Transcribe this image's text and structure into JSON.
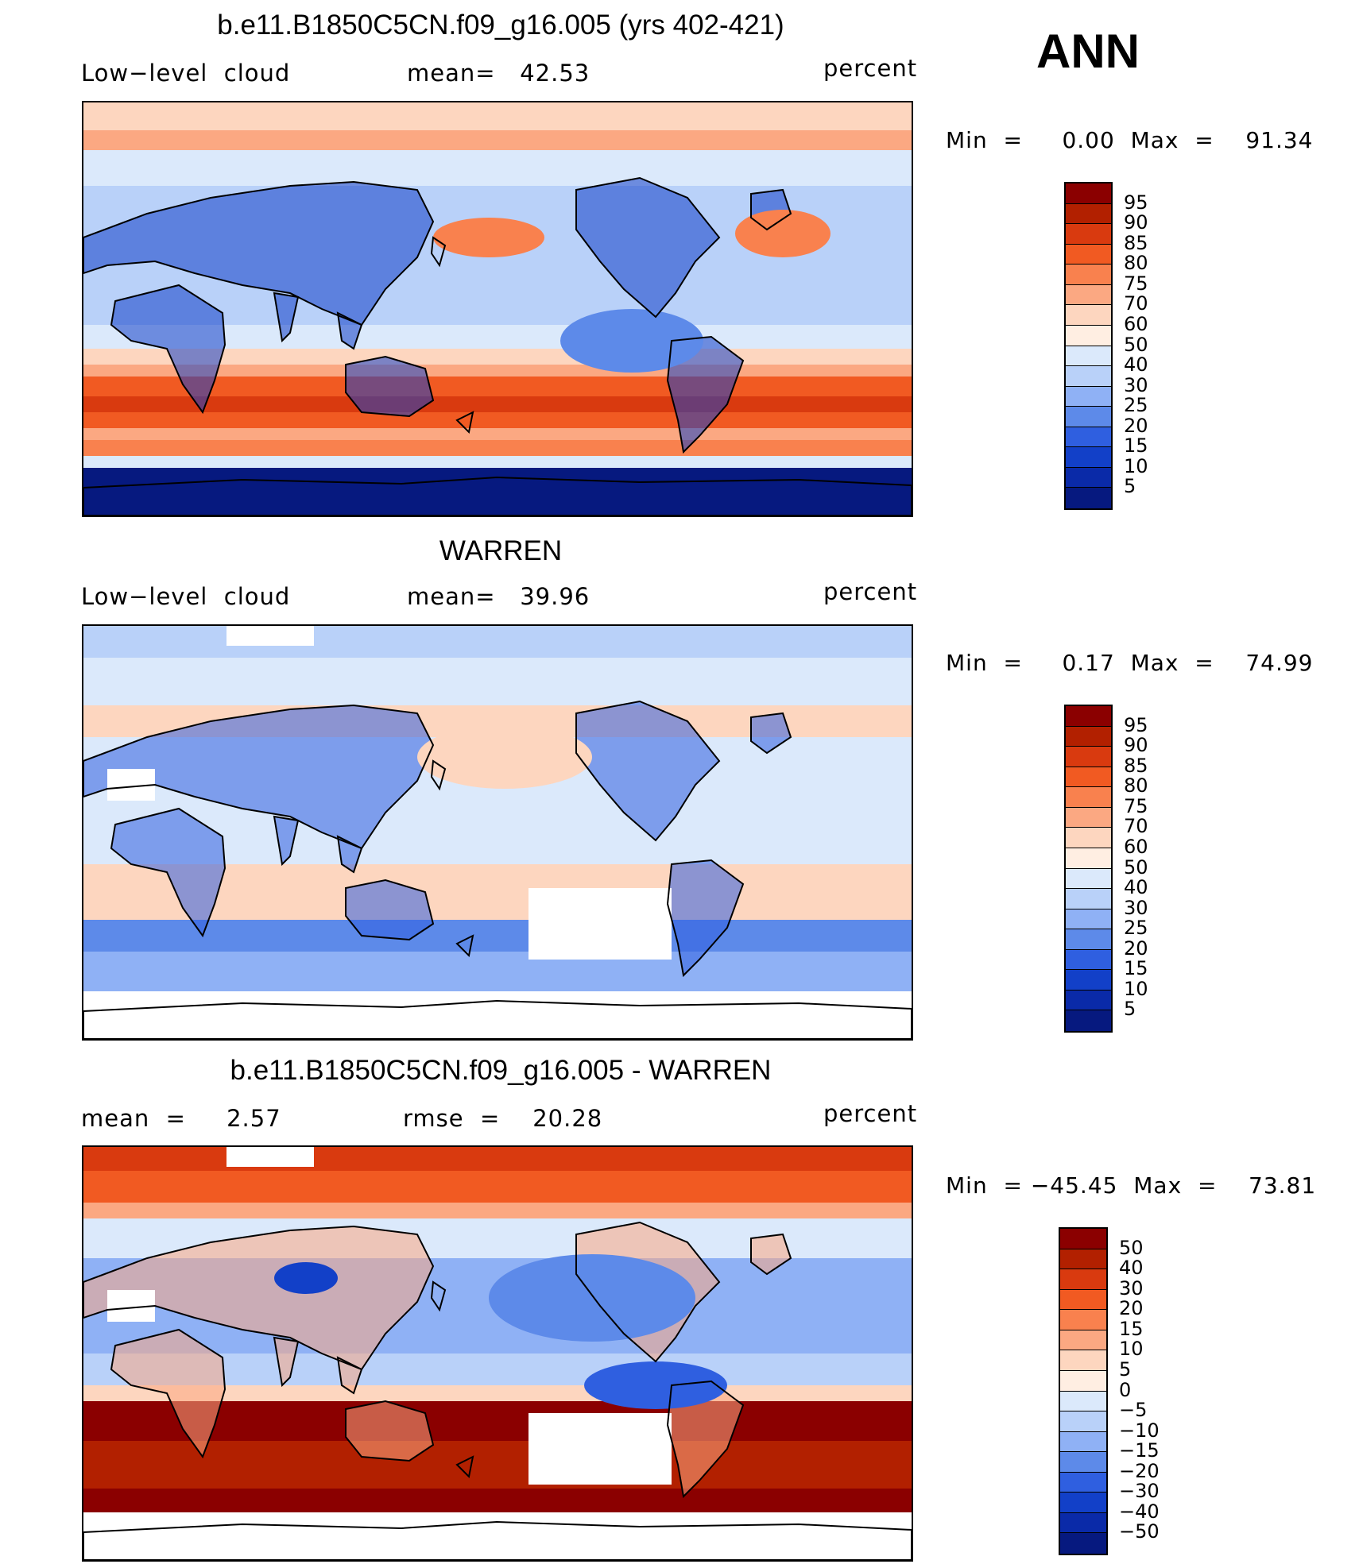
{
  "season": "ANN",
  "panels": [
    {
      "title": "b.e11.B1850C5CN.f09_g16.005 (yrs 402-421)",
      "left_label": "Low−level  cloud",
      "center_label": "mean=   42.53",
      "right_label": "percent",
      "minmax": "Min  =     0.00  Max  =    91.34",
      "colorbar_labels": [
        "95",
        "90",
        "85",
        "80",
        "75",
        "70",
        "60",
        "50",
        "40",
        "30",
        "25",
        "20",
        "15",
        "10",
        "5"
      ],
      "colorbar_colors": [
        "#8b0000",
        "#b22000",
        "#d93a0f",
        "#f15a22",
        "#f9814e",
        "#fba882",
        "#fdd6bf",
        "#ffeee2",
        "#dbe9fb",
        "#b9d1f9",
        "#8fb1f5",
        "#5d8ae9",
        "#2f5fe0",
        "#1240c8",
        "#0a2aa8",
        "#06197f"
      ],
      "map_style": "model"
    },
    {
      "title": "WARREN",
      "left_label": "Low−level  cloud",
      "center_label": "mean=   39.96",
      "right_label": "percent",
      "minmax": "Min  =     0.17  Max  =    74.99",
      "colorbar_labels": [
        "95",
        "90",
        "85",
        "80",
        "75",
        "70",
        "60",
        "50",
        "40",
        "30",
        "25",
        "20",
        "15",
        "10",
        "5"
      ],
      "colorbar_colors": [
        "#8b0000",
        "#b22000",
        "#d93a0f",
        "#f15a22",
        "#f9814e",
        "#fba882",
        "#fdd6bf",
        "#ffeee2",
        "#dbe9fb",
        "#b9d1f9",
        "#8fb1f5",
        "#5d8ae9",
        "#2f5fe0",
        "#1240c8",
        "#0a2aa8",
        "#06197f"
      ],
      "map_style": "obs"
    },
    {
      "title": "b.e11.B1850C5CN.f09_g16.005 - WARREN",
      "left_label": "mean  =     2.57",
      "center_label": "rmse  =    20.28",
      "right_label": "percent",
      "minmax": "Min  = −45.45  Max  =    73.81",
      "colorbar_labels": [
        "50",
        "40",
        "30",
        "20",
        "15",
        "10",
        "5",
        "0",
        "−5",
        "−10",
        "−15",
        "−20",
        "−30",
        "−40",
        "−50"
      ],
      "colorbar_colors": [
        "#8b0000",
        "#b22000",
        "#d93a0f",
        "#f15a22",
        "#f9814e",
        "#fba882",
        "#fdd6bf",
        "#ffeee2",
        "#dbe9fb",
        "#b9d1f9",
        "#8fb1f5",
        "#5d8ae9",
        "#2f5fe0",
        "#1240c8",
        "#0a2aa8",
        "#06197f"
      ],
      "map_style": "diff"
    }
  ]
}
